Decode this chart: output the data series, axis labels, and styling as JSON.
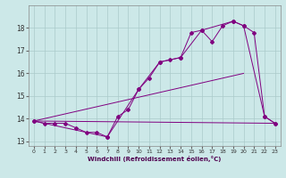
{
  "xlabel": "Windchill (Refroidissement éolien,°C)",
  "background_color": "#cce8e8",
  "line_color": "#800080",
  "xlim": [
    -0.5,
    23.5
  ],
  "ylim": [
    12.8,
    19.0
  ],
  "xticks": [
    0,
    1,
    2,
    3,
    4,
    5,
    6,
    7,
    8,
    9,
    10,
    11,
    12,
    13,
    14,
    15,
    16,
    17,
    18,
    19,
    20,
    21,
    22,
    23
  ],
  "yticks": [
    13,
    14,
    15,
    16,
    17,
    18
  ],
  "grid_color": "#aacaca",
  "line1_x": [
    0,
    1,
    2,
    3,
    4,
    5,
    6,
    7,
    8,
    9,
    10,
    11,
    12,
    13,
    14,
    15,
    16,
    17,
    18,
    19,
    20,
    21,
    22,
    23
  ],
  "line1_y": [
    13.9,
    13.8,
    13.8,
    13.8,
    13.6,
    13.4,
    13.4,
    13.2,
    14.1,
    14.4,
    15.3,
    15.8,
    16.5,
    16.6,
    16.7,
    17.8,
    17.9,
    17.4,
    18.1,
    18.3,
    18.1,
    17.8,
    14.1,
    13.8
  ],
  "line2_x": [
    0,
    23
  ],
  "line2_y": [
    13.9,
    13.8
  ],
  "line3_x": [
    0,
    20
  ],
  "line3_y": [
    13.9,
    16.0
  ],
  "line4_x": [
    0,
    7,
    10,
    12,
    14,
    16,
    19,
    20,
    22,
    23
  ],
  "line4_y": [
    13.9,
    13.2,
    15.3,
    16.5,
    16.7,
    17.9,
    18.3,
    18.1,
    14.1,
    13.8
  ]
}
